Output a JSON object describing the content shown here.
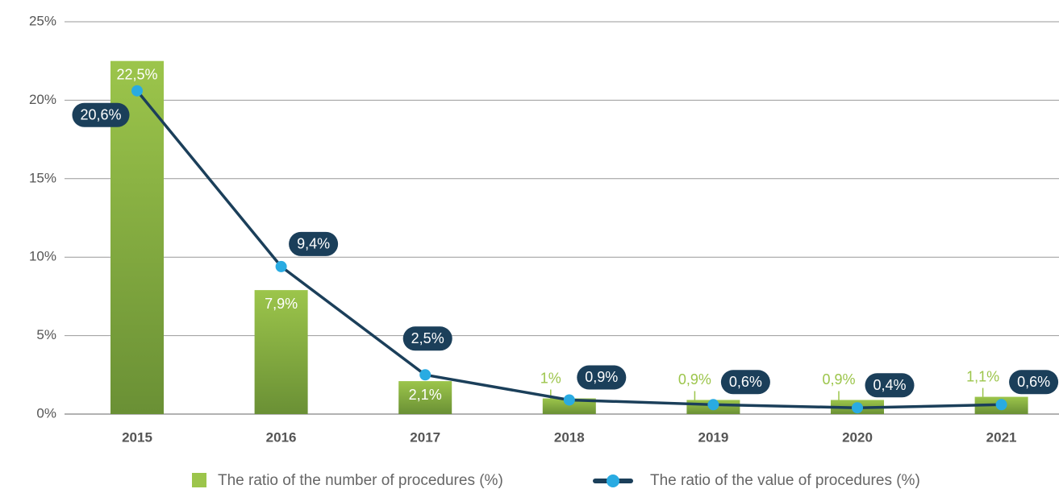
{
  "chart_data": {
    "type": "bar",
    "categories": [
      "2015",
      "2016",
      "2017",
      "2018",
      "2019",
      "2020",
      "2021"
    ],
    "series": [
      {
        "name": "The ratio of the number of procedures (%)",
        "type": "bar",
        "color": "#9cc54b",
        "values": [
          22.5,
          7.9,
          2.1,
          1,
          0.9,
          0.9,
          1.1
        ],
        "value_labels": [
          "22,5%",
          "7,9%",
          "2,1%",
          "1%",
          "0,9%",
          "0,9%",
          "1,1%"
        ]
      },
      {
        "name": "The ratio of the value of procedures (%)",
        "type": "line",
        "color": "#1b3f5a",
        "marker_color": "#29abe2",
        "values": [
          20.6,
          9.4,
          2.5,
          0.9,
          0.6,
          0.4,
          0.6
        ],
        "value_labels": [
          "20,6%",
          "9,4%",
          "2,5%",
          "0,9%",
          "0,6%",
          "0,4%",
          "0,6%"
        ]
      }
    ],
    "ylim": [
      0,
      25
    ],
    "yticks": [
      {
        "value": 0,
        "label": "0%"
      },
      {
        "value": 5,
        "label": "5%"
      },
      {
        "value": 10,
        "label": "10%"
      },
      {
        "value": 15,
        "label": "15%"
      },
      {
        "value": 20,
        "label": "20%"
      },
      {
        "value": 25,
        "label": "25%"
      }
    ],
    "grid": true,
    "legend": "bottom"
  }
}
